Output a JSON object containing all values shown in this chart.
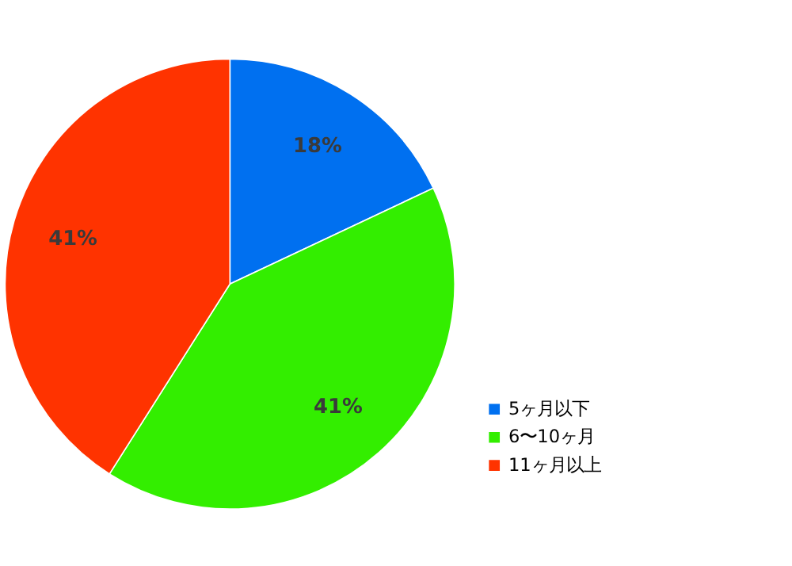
{
  "chart_data": {
    "type": "pie",
    "categories": [
      "5ヶ月以下",
      "6〜10ヶ月",
      "11ヶ月以上"
    ],
    "values": [
      18,
      41,
      41
    ],
    "colors": [
      "#0070f0",
      "#33ee00",
      "#ff3300"
    ],
    "value_labels": [
      "18%",
      "41%",
      "41%"
    ],
    "legend": "bottom right"
  }
}
